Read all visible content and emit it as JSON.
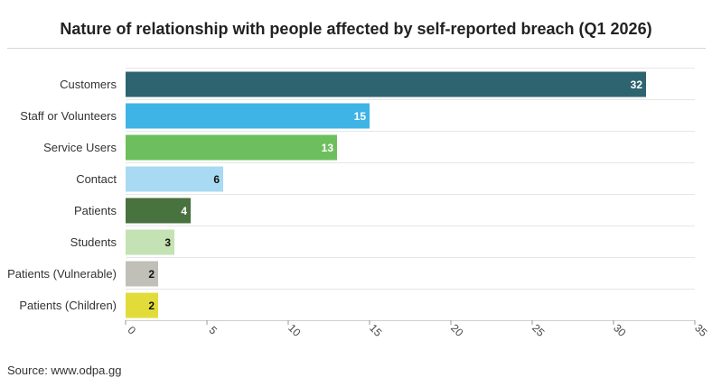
{
  "title": "Nature of relationship with people affected by self-reported breach (Q1 2026)",
  "source": "Source: www.odpa.gg",
  "chart_data": {
    "type": "bar",
    "orientation": "horizontal",
    "categories": [
      "Customers",
      "Staff or Volunteers",
      "Service Users",
      "Contact",
      "Patients",
      "Students",
      "Patients (Vulnerable)",
      "Patients (Children)"
    ],
    "values": [
      32,
      15,
      13,
      6,
      4,
      3,
      2,
      2
    ],
    "colors": [
      "#2e6470",
      "#3eb3e6",
      "#6dbf5e",
      "#a8daf3",
      "#48723e",
      "#c4e2b3",
      "#c0c0b8",
      "#e1dc3a"
    ],
    "label_colors": [
      "#ffffff",
      "#ffffff",
      "#ffffff",
      "#111111",
      "#ffffff",
      "#111111",
      "#111111",
      "#111111"
    ],
    "xlim": [
      0,
      35
    ],
    "xticks": [
      0,
      5,
      10,
      15,
      20,
      25,
      30,
      35
    ],
    "grid": true,
    "legend": "none"
  }
}
